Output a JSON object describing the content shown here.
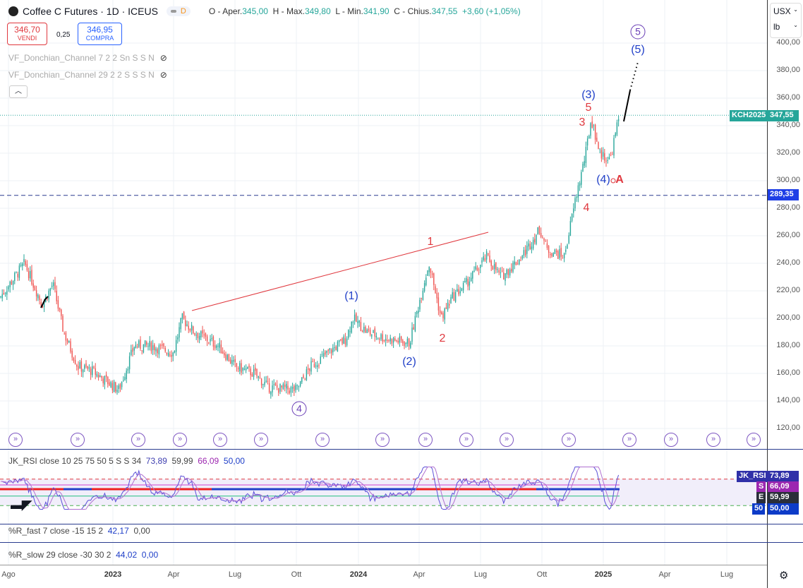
{
  "header": {
    "title": "Coffee C Futures · 1D · ICEUS",
    "status_label": "D",
    "ohlc": {
      "o_label": "O - Aper.",
      "o": "345,00",
      "h_label": "H - Max.",
      "h": "349,80",
      "l_label": "L - Min.",
      "l": "341,90",
      "c_label": "C - Chius.",
      "c": "347,55",
      "change": "+3,60 (+1,05%)"
    }
  },
  "trade": {
    "sell_price": "346,70",
    "sell_label": "VENDI",
    "spread": "0,25",
    "buy_price": "346,95",
    "buy_label": "COMPRA"
  },
  "indicators": [
    "VF_Donchian_Channel 7 2 2 Sn S S N",
    "VF_Donchian_Channel 29 2 2 S S S N"
  ],
  "axis": {
    "currency": "USX",
    "unit": "lb",
    "price_ticks": [
      "400,00",
      "380,00",
      "360,00",
      "340,00",
      "320,00",
      "300,00",
      "280,00",
      "260,00",
      "240,00",
      "220,00",
      "200,00",
      "180,00",
      "160,00",
      "140,00",
      "120,00"
    ],
    "time_ticks": [
      {
        "l": "Ago",
        "b": false
      },
      {
        "l": "2023",
        "b": true
      },
      {
        "l": "Apr",
        "b": false
      },
      {
        "l": "Lug",
        "b": false
      },
      {
        "l": "Ott",
        "b": false
      },
      {
        "l": "2024",
        "b": true
      },
      {
        "l": "Apr",
        "b": false
      },
      {
        "l": "Lug",
        "b": false
      },
      {
        "l": "Ott",
        "b": false
      },
      {
        "l": "2025",
        "b": true
      },
      {
        "l": "Apr",
        "b": false
      },
      {
        "l": "Lug",
        "b": false
      }
    ]
  },
  "price_tags": {
    "symbol": "KCH2025",
    "last": "347,55",
    "hline": "289,35"
  },
  "waves": {
    "c4": "4",
    "c5": "5",
    "b1": "(1)",
    "b2": "(2)",
    "b3": "(3)",
    "b4": "(4)",
    "b5": "(5)",
    "r1": "1",
    "r2": "2",
    "r3": "3",
    "r4": "4",
    "r5": "5",
    "rA": "A"
  },
  "rsi": {
    "title": "JK_RSI close 10 25 75 50 5 S S 34",
    "v1": "73,89",
    "v2": "59,99",
    "v3": "66,09",
    "v4": "50,00",
    "tags": [
      {
        "k": "JK_RSI",
        "v": "73,89"
      },
      {
        "k": "S",
        "v": "66,09"
      },
      {
        "k": "E",
        "v": "59,99"
      },
      {
        "k": "50",
        "v": "50,00"
      }
    ]
  },
  "r_fast": {
    "title": "%R_fast 7 close -15 15 2",
    "v1": "42,17",
    "v2": "0,00"
  },
  "r_slow": {
    "title": "%R_slow 29 close -30 30 2",
    "v1": "44,02",
    "v2": "0,00"
  },
  "colors": {
    "up": "#26a69a",
    "down": "#ef5350",
    "accent": "#2962ff"
  },
  "chart_data": {
    "type": "candlestick",
    "title": "Coffee C Futures · 1D · ICEUS",
    "ylabel": "USX/lb",
    "ylim": [
      120,
      400
    ],
    "hline": 289.35,
    "last": 347.55,
    "close_path": [
      [
        "2022-07-19",
        215
      ],
      [
        "2022-08-25",
        240
      ],
      [
        "2022-09-20",
        210
      ],
      [
        "2022-10-06",
        225
      ],
      [
        "2022-10-22",
        190
      ],
      [
        "2022-11-12",
        165
      ],
      [
        "2022-12-03",
        162
      ],
      [
        "2023-01-12",
        148
      ],
      [
        "2023-02-04",
        180
      ],
      [
        "2023-03-02",
        180
      ],
      [
        "2023-04-03",
        175
      ],
      [
        "2023-04-16",
        200
      ],
      [
        "2023-05-04",
        190
      ],
      [
        "2023-06-09",
        180
      ],
      [
        "2023-07-04",
        165
      ],
      [
        "2023-08-01",
        160
      ],
      [
        "2023-08-22",
        150
      ],
      [
        "2023-10-03",
        148
      ],
      [
        "2023-10-24",
        165
      ],
      [
        "2023-11-19",
        175
      ],
      [
        "2023-12-15",
        185
      ],
      [
        "2023-12-26",
        200
      ],
      [
        "2024-01-16",
        190
      ],
      [
        "2024-02-16",
        185
      ],
      [
        "2024-03-19",
        182
      ],
      [
        "2024-04-09",
        225
      ],
      [
        "2024-04-17",
        240
      ],
      [
        "2024-05-05",
        200
      ],
      [
        "2024-05-21",
        215
      ],
      [
        "2024-06-11",
        225
      ],
      [
        "2024-07-12",
        245
      ],
      [
        "2024-08-02",
        230
      ],
      [
        "2024-09-02",
        245
      ],
      [
        "2024-09-29",
        265
      ],
      [
        "2024-10-09",
        250
      ],
      [
        "2024-11-04",
        245
      ],
      [
        "2024-11-20",
        285
      ],
      [
        "2024-12-06",
        320
      ],
      [
        "2024-12-14",
        345
      ],
      [
        "2024-12-27",
        320
      ],
      [
        "2025-01-11",
        315
      ],
      [
        "2025-01-25",
        347.55
      ]
    ]
  }
}
